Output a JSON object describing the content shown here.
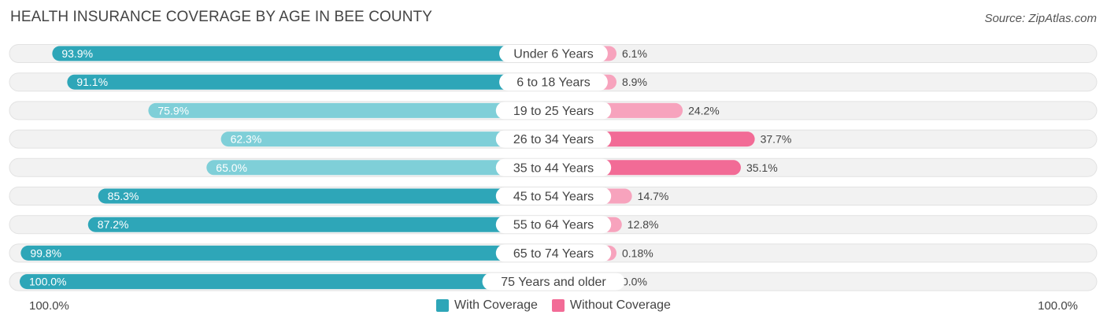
{
  "title": "HEALTH INSURANCE COVERAGE BY AGE IN BEE COUNTY",
  "source": "Source: ZipAtlas.com",
  "axis": {
    "left_label": "100.0%",
    "right_label": "100.0%"
  },
  "legend": {
    "with_label": "With Coverage",
    "without_label": "Without Coverage"
  },
  "colors": {
    "with_dark": "#2ea6b8",
    "with_light": "#7fcfd8",
    "without_dark": "#f26b96",
    "without_light": "#f7a3bd",
    "track": "#f0f0f0"
  },
  "chart_data": {
    "type": "bar",
    "title": "HEALTH INSURANCE COVERAGE BY AGE IN BEE COUNTY",
    "categories": [
      "Under 6 Years",
      "6 to 18 Years",
      "19 to 25 Years",
      "26 to 34 Years",
      "35 to 44 Years",
      "45 to 54 Years",
      "55 to 64 Years",
      "65 to 74 Years",
      "75 Years and older"
    ],
    "series": [
      {
        "name": "With Coverage",
        "values": [
          93.9,
          91.1,
          75.9,
          62.3,
          65.0,
          85.3,
          87.2,
          99.8,
          100.0
        ],
        "labels": [
          "93.9%",
          "91.1%",
          "75.9%",
          "62.3%",
          "65.0%",
          "85.3%",
          "87.2%",
          "99.8%",
          "100.0%"
        ]
      },
      {
        "name": "Without Coverage",
        "values": [
          6.1,
          8.9,
          24.2,
          37.7,
          35.1,
          14.7,
          12.8,
          0.18,
          0.0
        ],
        "labels": [
          "6.1%",
          "8.9%",
          "24.2%",
          "37.7%",
          "35.1%",
          "14.7%",
          "12.8%",
          "0.18%",
          "0.0%"
        ]
      }
    ],
    "xlim": [
      -100,
      100
    ],
    "legend_position": "bottom-center"
  }
}
